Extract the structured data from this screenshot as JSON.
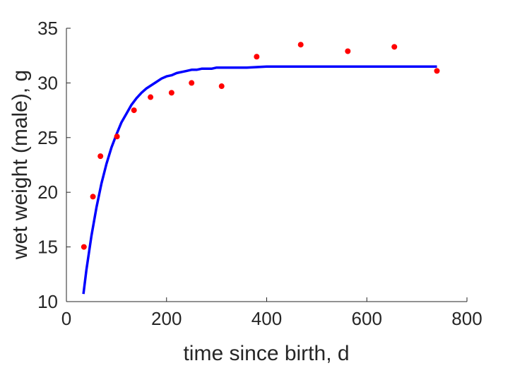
{
  "chart_data": {
    "type": "scatter",
    "title": "",
    "xlabel": "time since birth, d",
    "ylabel": "wet weight (male), g",
    "xlim": [
      0,
      800
    ],
    "ylim": [
      10,
      35
    ],
    "xticks": [
      0,
      200,
      400,
      600,
      800
    ],
    "yticks": [
      10,
      15,
      20,
      25,
      30,
      35
    ],
    "grid": false,
    "legend": "none",
    "series": [
      {
        "kind": "points",
        "color": "#ff0000",
        "x": [
          35,
          53,
          68,
          101,
          135,
          168,
          210,
          250,
          310,
          380,
          468,
          562,
          655,
          740
        ],
        "y": [
          15.0,
          19.6,
          23.3,
          25.1,
          27.5,
          28.7,
          29.1,
          30.0,
          29.7,
          32.4,
          33.5,
          32.9,
          33.3,
          31.1
        ]
      },
      {
        "kind": "line",
        "color": "#0000ff",
        "x": [
          34,
          40,
          50,
          60,
          70,
          80,
          90,
          100,
          110,
          120,
          130,
          140,
          150,
          160,
          170,
          180,
          190,
          200,
          210,
          220,
          230,
          240,
          250,
          260,
          270,
          280,
          290,
          300,
          320,
          340,
          360,
          400,
          450,
          500,
          550,
          600,
          650,
          700,
          740
        ],
        "y": [
          10.7,
          12.9,
          16.0,
          18.6,
          20.8,
          22.6,
          24.1,
          25.3,
          26.4,
          27.2,
          28.0,
          28.6,
          29.1,
          29.5,
          29.8,
          30.1,
          30.4,
          30.6,
          30.7,
          30.9,
          31.0,
          31.1,
          31.2,
          31.2,
          31.3,
          31.3,
          31.3,
          31.4,
          31.4,
          31.4,
          31.4,
          31.5,
          31.5,
          31.5,
          31.5,
          31.5,
          31.5,
          31.5,
          31.5
        ]
      }
    ]
  }
}
